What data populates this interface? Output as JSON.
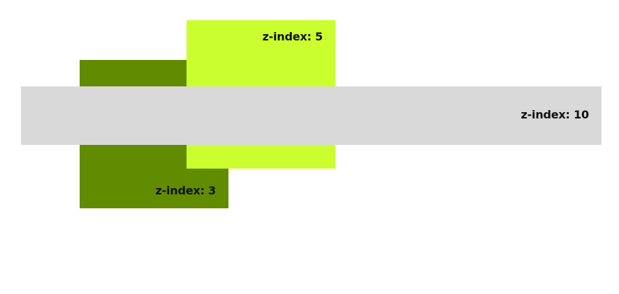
{
  "boxes": {
    "dark_green": {
      "label": "z-index: 3",
      "color": "#618c00"
    },
    "lime": {
      "label": "z-index: 5",
      "color": "#cbfe2e"
    },
    "gray": {
      "label": "z-index: 10",
      "color": "#d9d9d9"
    }
  }
}
